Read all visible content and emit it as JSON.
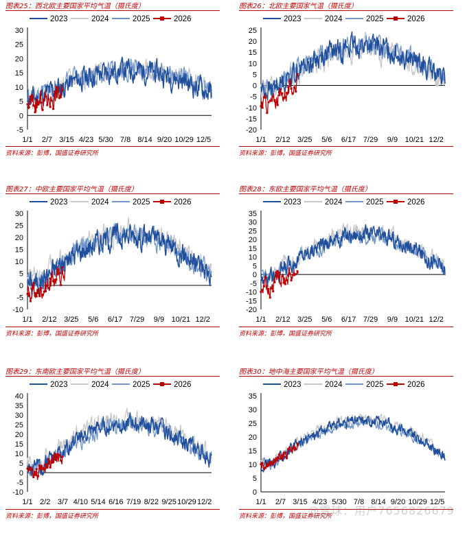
{
  "colors": {
    "2023": "#1f4e9c",
    "2024": "#c8c8c8",
    "2025": "#6f95cc",
    "2026": "#c00000",
    "accent": "#c00000"
  },
  "watermark": "@雪球：用户7656826679",
  "chart_data": [
    {
      "type": "line",
      "title": "图表25：西北欧主要国家平均气温（摄氏度）",
      "source": "资料来源：彭博，国盛证券研究所",
      "ylim": [
        -5,
        30
      ],
      "yticks": [
        -5,
        0,
        5,
        10,
        15,
        20,
        25,
        30
      ],
      "xticks": [
        "1/1",
        "2/7",
        "3/15",
        "4/23",
        "5/30",
        "7/8",
        "8/14",
        "9/20",
        "10/29",
        "12/5"
      ],
      "series": [
        {
          "name": "2023",
          "base": 6,
          "amp": 10,
          "noise": 3.2,
          "days": 365,
          "seed": 11
        },
        {
          "name": "2024",
          "base": 7,
          "amp": 9.5,
          "noise": 2.8,
          "days": 365,
          "seed": 22
        },
        {
          "name": "2025",
          "base": 6.5,
          "amp": 10,
          "noise": 3.0,
          "days": 365,
          "seed": 33
        },
        {
          "name": "2026",
          "base": 4,
          "amp": 10,
          "noise": 3.0,
          "days": 70,
          "seed": 44
        }
      ]
    },
    {
      "type": "line",
      "title": "图表26：北欧主要国家气温（摄氏度）",
      "source": "资料来源：彭博，国盛证券研究所",
      "ylim": [
        -20,
        25
      ],
      "yticks": [
        -20,
        -15,
        -10,
        -5,
        0,
        5,
        10,
        15,
        20,
        25
      ],
      "xticks": [
        "1/1",
        "2/12",
        "3/25",
        "5/6",
        "6/17",
        "7/29",
        "9/9",
        "10/21",
        "12/2"
      ],
      "series": [
        {
          "name": "2023",
          "base": -2,
          "amp": 20,
          "noise": 4.0,
          "days": 365,
          "seed": 55
        },
        {
          "name": "2024",
          "base": -3,
          "amp": 20,
          "noise": 4.5,
          "days": 365,
          "seed": 66
        },
        {
          "name": "2025",
          "base": -1,
          "amp": 19,
          "noise": 3.5,
          "days": 365,
          "seed": 77
        },
        {
          "name": "2026",
          "base": -8,
          "amp": 20,
          "noise": 3.0,
          "days": 75,
          "seed": 88
        }
      ]
    },
    {
      "type": "line",
      "title": "图表27：中欧主要国家平均气温（摄氏度）",
      "source": "资料来源：彭博，国盛证券研究所",
      "ylim": [
        -10,
        30
      ],
      "yticks": [
        -10,
        -5,
        0,
        5,
        10,
        15,
        20,
        25,
        30
      ],
      "xticks": [
        "1/1",
        "2/12",
        "3/25",
        "5/6",
        "6/17",
        "7/29",
        "9/9",
        "10/21",
        "12/2"
      ],
      "series": [
        {
          "name": "2023",
          "base": 1,
          "amp": 20,
          "noise": 4.0,
          "days": 365,
          "seed": 101
        },
        {
          "name": "2024",
          "base": 3,
          "amp": 19,
          "noise": 3.8,
          "days": 365,
          "seed": 202
        },
        {
          "name": "2025",
          "base": 1,
          "amp": 20,
          "noise": 3.6,
          "days": 365,
          "seed": 303
        },
        {
          "name": "2026",
          "base": -3,
          "amp": 20,
          "noise": 3.2,
          "days": 75,
          "seed": 404
        }
      ]
    },
    {
      "type": "line",
      "title": "图表28：东欧主要国家平均气温（摄氏度）",
      "source": "资料来源：彭博，国盛证券研究所",
      "ylim": [
        -20,
        35
      ],
      "yticks": [
        -20,
        -15,
        -10,
        -5,
        0,
        5,
        10,
        15,
        20,
        25,
        30,
        35
      ],
      "xticks": [
        "1/1",
        "2/12",
        "3/25",
        "5/6",
        "6/17",
        "7/29",
        "9/9",
        "10/21",
        "12/2"
      ],
      "series": [
        {
          "name": "2023",
          "base": -2,
          "amp": 25,
          "noise": 3.8,
          "days": 365,
          "seed": 505
        },
        {
          "name": "2024",
          "base": -1,
          "amp": 25,
          "noise": 4.0,
          "days": 365,
          "seed": 606
        },
        {
          "name": "2025",
          "base": -2,
          "amp": 24,
          "noise": 3.5,
          "days": 365,
          "seed": 707
        },
        {
          "name": "2026",
          "base": -7,
          "amp": 24,
          "noise": 4.0,
          "days": 75,
          "seed": 808
        }
      ]
    },
    {
      "type": "line",
      "title": "图表29：东南欧主要国家平均气温（摄氏度）",
      "source": "资料来源：彭博，国盛证券研究所",
      "ylim": [
        -10,
        40
      ],
      "yticks": [
        -10,
        -5,
        0,
        5,
        10,
        15,
        20,
        25,
        30,
        35,
        40
      ],
      "xticks": [
        "1/1",
        "2/2",
        "3/7",
        "4/10",
        "5/14",
        "6/16",
        "7/19",
        "8/22",
        "9/25",
        "10/29",
        "12/2"
      ],
      "series": [
        {
          "name": "2023",
          "base": 2,
          "amp": 24,
          "noise": 3.5,
          "days": 365,
          "seed": 909
        },
        {
          "name": "2024",
          "base": 4,
          "amp": 24,
          "noise": 3.8,
          "days": 365,
          "seed": 1010
        },
        {
          "name": "2025",
          "base": 2,
          "amp": 23,
          "noise": 3.4,
          "days": 365,
          "seed": 1111
        },
        {
          "name": "2026",
          "base": 0,
          "amp": 22,
          "noise": 3.2,
          "days": 70,
          "seed": 1212
        }
      ]
    },
    {
      "type": "line",
      "title": "图表30：地中海主要国家平均气温（摄氏度）",
      "source": "资料来源：彭博，国盛证券研究所",
      "ylim": [
        0,
        35
      ],
      "yticks": [
        0,
        5,
        10,
        15,
        20,
        25,
        30,
        35
      ],
      "xticks": [
        "1/1",
        "2/7",
        "3/15",
        "4/23",
        "5/30",
        "7/8",
        "8/14",
        "9/20",
        "10/29",
        "12/5"
      ],
      "series": [
        {
          "name": "2023",
          "base": 10,
          "amp": 16,
          "noise": 1.6,
          "days": 365,
          "seed": 1313
        },
        {
          "name": "2024",
          "base": 11,
          "amp": 16,
          "noise": 1.4,
          "days": 365,
          "seed": 1414
        },
        {
          "name": "2025",
          "base": 10,
          "amp": 15,
          "noise": 1.4,
          "days": 365,
          "seed": 1515
        },
        {
          "name": "2026",
          "base": 10,
          "amp": 15,
          "noise": 1.3,
          "days": 75,
          "seed": 1616
        }
      ]
    }
  ]
}
